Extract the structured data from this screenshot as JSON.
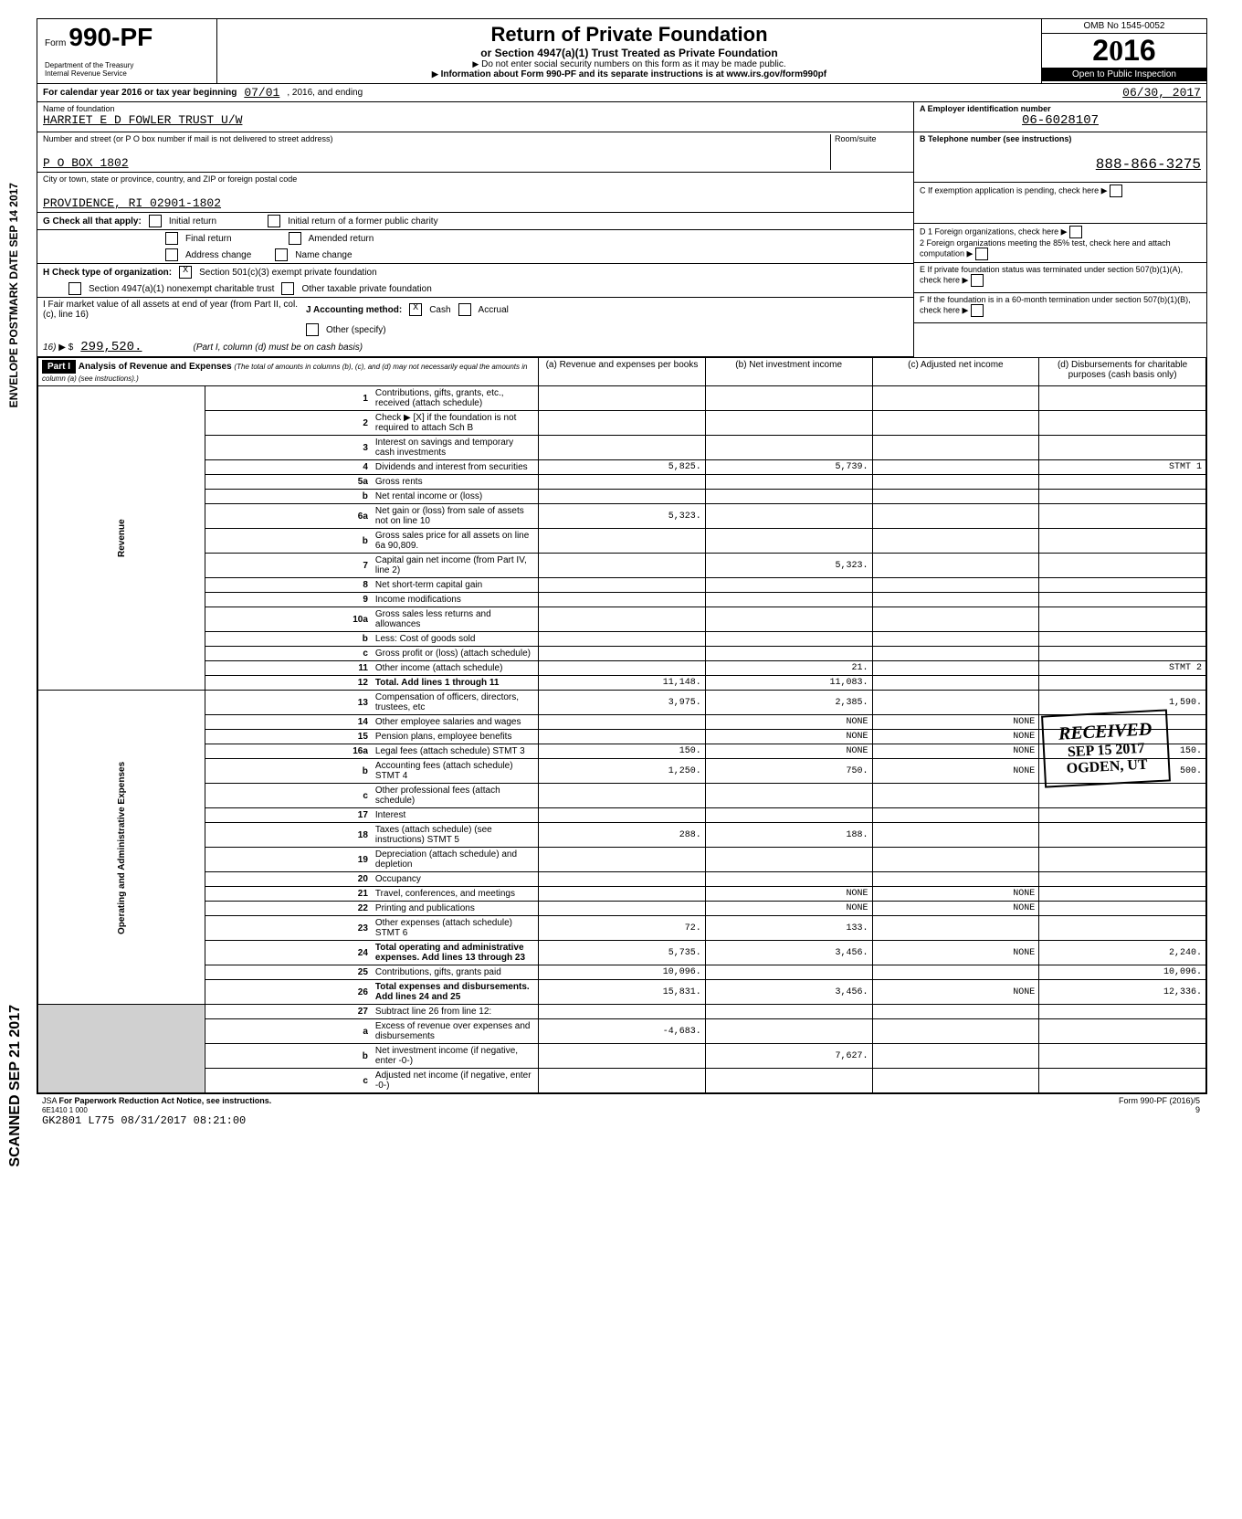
{
  "header": {
    "form_prefix": "Form",
    "form_number": "990-PF",
    "dept": "Department of the Treasury",
    "irs": "Internal Revenue Service",
    "title": "Return of Private Foundation",
    "subtitle1": "or Section 4947(a)(1) Trust Treated as Private Foundation",
    "subtitle2": "Do not enter social security numbers on this form as it may be made public.",
    "subtitle3": "Information about Form 990-PF and its separate instructions is at www.irs.gov/form990pf",
    "omb": "OMB No 1545-0052",
    "year": "2016",
    "open": "Open to Public Inspection"
  },
  "period": {
    "label": "For calendar year 2016 or tax year beginning",
    "start": "07/01",
    "mid": ", 2016, and ending",
    "end": "06/30, 2017"
  },
  "foundation": {
    "name_label": "Name of foundation",
    "name": "HARRIET E D FOWLER TRUST U/W",
    "addr_label": "Number and street (or P O box number if mail is not delivered to street address)",
    "room_label": "Room/suite",
    "address": "P O BOX 1802",
    "city_label": "City or town, state or province, country, and ZIP or foreign postal code",
    "city": "PROVIDENCE, RI 02901-1802",
    "ein_label": "A  Employer identification number",
    "ein": "06-6028107",
    "phone_label": "B  Telephone number (see instructions)",
    "phone": "888-866-3275",
    "c_label": "C  If exemption application is pending, check here",
    "d1": "D  1 Foreign organizations, check here",
    "d2": "2 Foreign organizations meeting the 85% test, check here and attach computation",
    "e": "E  If private foundation status was terminated under section 507(b)(1)(A), check here",
    "f": "F  If the foundation is in a 60-month termination under section 507(b)(1)(B), check here"
  },
  "checks": {
    "g_label": "G Check all that apply:",
    "initial": "Initial return",
    "initial_former": "Initial return of a former public charity",
    "final": "Final return",
    "amended": "Amended return",
    "address_change": "Address change",
    "name_change": "Name change",
    "h_label": "H Check type of organization:",
    "h_501c3": "Section 501(c)(3) exempt private foundation",
    "h_4947": "Section 4947(a)(1) nonexempt charitable trust",
    "h_other": "Other taxable private foundation",
    "h_x": "X",
    "i_label": "I  Fair market value of all assets at end of year (from Part II, col. (c), line 16)",
    "i_value": "299,520.",
    "j_label": "J Accounting method:",
    "j_cash": "Cash",
    "j_accrual": "Accrual",
    "j_x": "X",
    "j_other": "Other (specify)",
    "j_note": "(Part I, column (d) must be on cash basis)"
  },
  "part1": {
    "header": "Part I",
    "title": "Analysis of Revenue and Expenses",
    "note": "(The total of amounts in columns (b), (c), and (d) may not necessarily equal the amounts in column (a) (see instructions).)",
    "col_a": "(a) Revenue and expenses per books",
    "col_b": "(b) Net investment income",
    "col_c": "(c) Adjusted net income",
    "col_d": "(d) Disbursements for charitable purposes (cash basis only)"
  },
  "rows": [
    {
      "n": "1",
      "desc": "Contributions, gifts, grants, etc., received (attach schedule)",
      "a": "",
      "b": "",
      "c": "",
      "d": ""
    },
    {
      "n": "2",
      "desc": "Check ▶ [X] if the foundation is not required to attach Sch B",
      "a": "",
      "b": "",
      "c": "",
      "d": ""
    },
    {
      "n": "3",
      "desc": "Interest on savings and temporary cash investments",
      "a": "",
      "b": "",
      "c": "",
      "d": ""
    },
    {
      "n": "4",
      "desc": "Dividends and interest from securities",
      "a": "5,825.",
      "b": "5,739.",
      "c": "",
      "d": "STMT 1"
    },
    {
      "n": "5a",
      "desc": "Gross rents",
      "a": "",
      "b": "",
      "c": "",
      "d": ""
    },
    {
      "n": "b",
      "desc": "Net rental income or (loss)",
      "a": "",
      "b": "",
      "c": "",
      "d": ""
    },
    {
      "n": "6a",
      "desc": "Net gain or (loss) from sale of assets not on line 10",
      "a": "5,323.",
      "b": "",
      "c": "",
      "d": ""
    },
    {
      "n": "b",
      "desc": "Gross sales price for all assets on line 6a     90,809.",
      "a": "",
      "b": "",
      "c": "",
      "d": ""
    },
    {
      "n": "7",
      "desc": "Capital gain net income (from Part IV, line 2)",
      "a": "",
      "b": "5,323.",
      "c": "",
      "d": ""
    },
    {
      "n": "8",
      "desc": "Net short-term capital gain",
      "a": "",
      "b": "",
      "c": "",
      "d": ""
    },
    {
      "n": "9",
      "desc": "Income modifications",
      "a": "",
      "b": "",
      "c": "",
      "d": ""
    },
    {
      "n": "10a",
      "desc": "Gross sales less returns and allowances",
      "a": "",
      "b": "",
      "c": "",
      "d": ""
    },
    {
      "n": "b",
      "desc": "Less: Cost of goods sold",
      "a": "",
      "b": "",
      "c": "",
      "d": ""
    },
    {
      "n": "c",
      "desc": "Gross profit or (loss) (attach schedule)",
      "a": "",
      "b": "",
      "c": "",
      "d": ""
    },
    {
      "n": "11",
      "desc": "Other income (attach schedule)",
      "a": "",
      "b": "21.",
      "c": "",
      "d": "STMT 2"
    },
    {
      "n": "12",
      "desc": "Total. Add lines 1 through 11",
      "a": "11,148.",
      "b": "11,083.",
      "c": "",
      "d": "",
      "bold": true
    },
    {
      "n": "13",
      "desc": "Compensation of officers, directors, trustees, etc",
      "a": "3,975.",
      "b": "2,385.",
      "c": "",
      "d": "1,590."
    },
    {
      "n": "14",
      "desc": "Other employee salaries and wages",
      "a": "",
      "b": "NONE",
      "c": "NONE",
      "d": ""
    },
    {
      "n": "15",
      "desc": "Pension plans, employee benefits",
      "a": "",
      "b": "NONE",
      "c": "NONE",
      "d": ""
    },
    {
      "n": "16a",
      "desc": "Legal fees (attach schedule)     STMT 3",
      "a": "150.",
      "b": "NONE",
      "c": "NONE",
      "d": "150."
    },
    {
      "n": "b",
      "desc": "Accounting fees (attach schedule) STMT 4",
      "a": "1,250.",
      "b": "750.",
      "c": "NONE",
      "d": "500."
    },
    {
      "n": "c",
      "desc": "Other professional fees (attach schedule)",
      "a": "",
      "b": "",
      "c": "",
      "d": ""
    },
    {
      "n": "17",
      "desc": "Interest",
      "a": "",
      "b": "",
      "c": "",
      "d": ""
    },
    {
      "n": "18",
      "desc": "Taxes (attach schedule) (see instructions) STMT 5",
      "a": "288.",
      "b": "188.",
      "c": "",
      "d": ""
    },
    {
      "n": "19",
      "desc": "Depreciation (attach schedule) and depletion",
      "a": "",
      "b": "",
      "c": "",
      "d": ""
    },
    {
      "n": "20",
      "desc": "Occupancy",
      "a": "",
      "b": "",
      "c": "",
      "d": ""
    },
    {
      "n": "21",
      "desc": "Travel, conferences, and meetings",
      "a": "",
      "b": "NONE",
      "c": "NONE",
      "d": ""
    },
    {
      "n": "22",
      "desc": "Printing and publications",
      "a": "",
      "b": "NONE",
      "c": "NONE",
      "d": ""
    },
    {
      "n": "23",
      "desc": "Other expenses (attach schedule) STMT 6",
      "a": "72.",
      "b": "133.",
      "c": "",
      "d": ""
    },
    {
      "n": "24",
      "desc": "Total operating and administrative expenses. Add lines 13 through 23",
      "a": "5,735.",
      "b": "3,456.",
      "c": "NONE",
      "d": "2,240.",
      "bold": true
    },
    {
      "n": "25",
      "desc": "Contributions, gifts, grants paid",
      "a": "10,096.",
      "b": "",
      "c": "",
      "d": "10,096."
    },
    {
      "n": "26",
      "desc": "Total expenses and disbursements. Add lines 24 and 25",
      "a": "15,831.",
      "b": "3,456.",
      "c": "NONE",
      "d": "12,336.",
      "bold": true
    },
    {
      "n": "27",
      "desc": "Subtract line 26 from line 12:",
      "a": "",
      "b": "",
      "c": "",
      "d": ""
    },
    {
      "n": "a",
      "desc": "Excess of revenue over expenses and disbursements",
      "a": "-4,683.",
      "b": "",
      "c": "",
      "d": ""
    },
    {
      "n": "b",
      "desc": "Net investment income (if negative, enter -0-)",
      "a": "",
      "b": "7,627.",
      "c": "",
      "d": ""
    },
    {
      "n": "c",
      "desc": "Adjusted net income (if negative, enter -0-)",
      "a": "",
      "b": "",
      "c": "",
      "d": ""
    }
  ],
  "sections": {
    "revenue": "Revenue",
    "expenses": "Operating and Administrative Expenses"
  },
  "stamp": {
    "received": "RECEIVED",
    "date": "SEP 15 2017",
    "ogden": "OGDEN, UT",
    "rs": "RS-OSC"
  },
  "sidebar": {
    "scanned": "SCANNED SEP 21 2017",
    "postmark": "ENVELOPE POSTMARK DATE SEP 14 2017"
  },
  "footer": {
    "jsa": "JSA",
    "paperwork": "For Paperwork Reduction Act Notice, see instructions.",
    "code": "6E1410 1 000",
    "batch": "GK2801 L775 08/31/2017 08:21:00",
    "form": "Form 990-PF (2016)/5",
    "page": "9"
  },
  "styling": {
    "background": "#ffffff",
    "border_color": "#000000",
    "shaded_bg": "#d0d0d0",
    "header_bg": "#000000",
    "header_fg": "#ffffff",
    "mono_font": "Courier New"
  }
}
